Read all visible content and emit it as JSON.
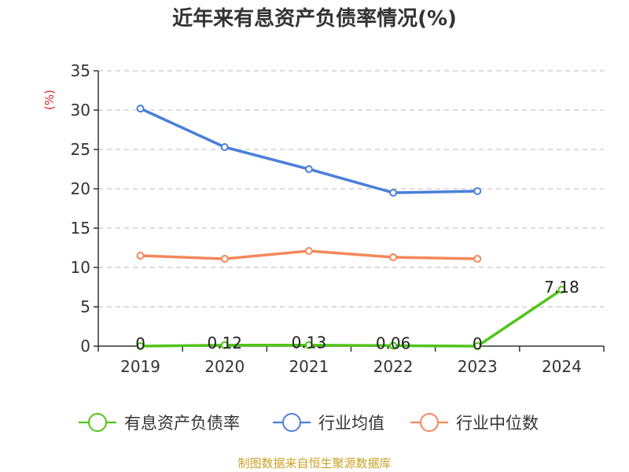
{
  "chart_data": {
    "type": "line",
    "title": "近年来有息资产负债率情况(%)",
    "ylabel": "(%)",
    "categories": [
      "2019",
      "2020",
      "2021",
      "2022",
      "2023",
      "2024"
    ],
    "ylim": [
      0,
      35
    ],
    "yticks": [
      0,
      5,
      10,
      15,
      20,
      25,
      30,
      35
    ],
    "grid": true,
    "legend_position": "bottom",
    "series": [
      {
        "name": "有息资产负债率",
        "color": "#52c41a",
        "values": [
          0,
          0.12,
          0.13,
          0.06,
          0,
          7.18
        ],
        "labels": [
          "0",
          "0.12",
          "0.13",
          "0.06",
          "0",
          "7.18"
        ]
      },
      {
        "name": "行业均值",
        "color": "#4a7fd9",
        "values": [
          30.2,
          25.3,
          22.5,
          19.5,
          19.7,
          null
        ]
      },
      {
        "name": "行业中位数",
        "color": "#f4875a",
        "values": [
          11.5,
          11.1,
          12.1,
          11.3,
          11.1,
          null
        ]
      }
    ]
  },
  "source": "制图数据来自恒生聚源数据库"
}
